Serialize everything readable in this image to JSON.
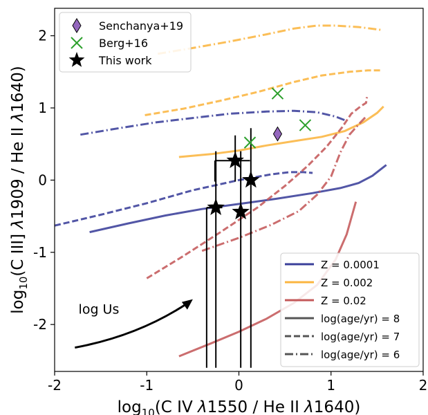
{
  "chart_data": {
    "type": "line",
    "xlabel_parts": [
      "log",
      "10",
      "(C IV ",
      "λ",
      "1550 / He II ",
      "λ",
      "1640)"
    ],
    "ylabel_parts": [
      "log",
      "10",
      "(C III] ",
      "λ",
      "1909 / He II ",
      "λ",
      "1640)"
    ],
    "xlim": [
      -2,
      2
    ],
    "ylim": [
      -2.65,
      2.38
    ],
    "x_ticks": [
      -2,
      -1,
      0,
      1,
      2
    ],
    "y_ticks": [
      -2,
      -1,
      0,
      1,
      2
    ],
    "x_tick_labels": [
      "-2",
      "-1",
      "0",
      "1",
      "2"
    ],
    "y_tick_labels": [
      "-2",
      "-1",
      "0",
      "1",
      "2"
    ],
    "grid": false,
    "colors": {
      "z0001": "#3a3f9a",
      "z002": "#fbb540",
      "z02": "#c4595a",
      "berg": "#2ca02c",
      "senchanya": "#9467bd"
    },
    "series": [
      {
        "name": "Z = 0.0001",
        "age": "8",
        "color": "#3a3f9a",
        "points": [
          [
            -1.62,
            -0.72
          ],
          [
            -1.2,
            -0.6
          ],
          [
            -0.8,
            -0.49
          ],
          [
            -0.4,
            -0.4
          ],
          [
            0,
            -0.33
          ],
          [
            0.4,
            -0.26
          ],
          [
            0.8,
            -0.18
          ],
          [
            1.1,
            -0.11
          ],
          [
            1.3,
            -0.04
          ],
          [
            1.45,
            0.06
          ],
          [
            1.55,
            0.16
          ],
          [
            1.6,
            0.21
          ]
        ]
      },
      {
        "name": "Z = 0.0001",
        "age": "7",
        "color": "#3a3f9a",
        "points": [
          [
            -2.0,
            -0.63
          ],
          [
            -1.5,
            -0.48
          ],
          [
            -1.0,
            -0.32
          ],
          [
            -0.5,
            -0.14
          ],
          [
            0,
            0
          ],
          [
            0.35,
            0.08
          ],
          [
            0.55,
            0.11
          ],
          [
            0.7,
            0.11
          ],
          [
            0.8,
            0.1
          ]
        ]
      },
      {
        "name": "Z = 0.0001",
        "age": "6",
        "color": "#3a3f9a",
        "points": [
          [
            -1.72,
            0.63
          ],
          [
            -1.3,
            0.72
          ],
          [
            -0.9,
            0.8
          ],
          [
            -0.5,
            0.86
          ],
          [
            -0.1,
            0.92
          ],
          [
            0.3,
            0.95
          ],
          [
            0.6,
            0.96
          ],
          [
            0.85,
            0.94
          ],
          [
            1.05,
            0.88
          ],
          [
            1.15,
            0.83
          ]
        ]
      },
      {
        "name": "Z = 0.002",
        "age": "8",
        "color": "#fbb540",
        "points": [
          [
            -0.65,
            0.32
          ],
          [
            -0.3,
            0.36
          ],
          [
            0,
            0.41
          ],
          [
            0.3,
            0.48
          ],
          [
            0.6,
            0.54
          ],
          [
            0.9,
            0.6
          ],
          [
            1.15,
            0.68
          ],
          [
            1.35,
            0.8
          ],
          [
            1.5,
            0.93
          ],
          [
            1.57,
            1.02
          ]
        ]
      },
      {
        "name": "Z = 0.002",
        "age": "7",
        "color": "#fbb540",
        "points": [
          [
            -1.02,
            0.9
          ],
          [
            -0.6,
            0.99
          ],
          [
            -0.2,
            1.1
          ],
          [
            0.2,
            1.22
          ],
          [
            0.6,
            1.36
          ],
          [
            0.9,
            1.45
          ],
          [
            1.2,
            1.5
          ],
          [
            1.4,
            1.52
          ],
          [
            1.55,
            1.52
          ]
        ]
      },
      {
        "name": "Z = 0.002",
        "age": "6",
        "color": "#fbb540",
        "points": [
          [
            -0.88,
            1.75
          ],
          [
            -0.5,
            1.83
          ],
          [
            -0.1,
            1.92
          ],
          [
            0.3,
            2.02
          ],
          [
            0.6,
            2.1
          ],
          [
            0.85,
            2.14
          ],
          [
            1.05,
            2.14
          ],
          [
            1.3,
            2.12
          ],
          [
            1.55,
            2.08
          ]
        ]
      },
      {
        "name": "Z = 0.02",
        "age": "8",
        "color": "#c4595a",
        "points": [
          [
            -0.65,
            -2.44
          ],
          [
            -0.3,
            -2.26
          ],
          [
            0,
            -2.1
          ],
          [
            0.3,
            -1.92
          ],
          [
            0.6,
            -1.7
          ],
          [
            0.85,
            -1.45
          ],
          [
            1.05,
            -1.1
          ],
          [
            1.17,
            -0.75
          ],
          [
            1.27,
            -0.3
          ]
        ]
      },
      {
        "name": "Z = 0.02",
        "age": "7",
        "color": "#c4595a",
        "points": [
          [
            -1.0,
            -1.36
          ],
          [
            -0.6,
            -1.05
          ],
          [
            -0.2,
            -0.72
          ],
          [
            0.2,
            -0.38
          ],
          [
            0.5,
            -0.08
          ],
          [
            0.75,
            0.2
          ],
          [
            0.95,
            0.46
          ],
          [
            1.12,
            0.73
          ],
          [
            1.22,
            0.92
          ],
          [
            1.32,
            1.02
          ],
          [
            1.38,
            1.07
          ],
          [
            1.39,
            1.15
          ]
        ]
      },
      {
        "name": "Z = 0.02",
        "age": "6",
        "color": "#c4595a",
        "points": [
          [
            -0.4,
            -0.98
          ],
          [
            0,
            -0.8
          ],
          [
            0.35,
            -0.62
          ],
          [
            0.65,
            -0.43
          ],
          [
            0.85,
            -0.2
          ],
          [
            1.0,
            0.05
          ],
          [
            1.1,
            0.38
          ],
          [
            1.2,
            0.63
          ],
          [
            1.32,
            0.8
          ],
          [
            1.38,
            0.88
          ]
        ]
      }
    ],
    "scatter": {
      "senchanya": {
        "name": "Senchanya+19",
        "color": "#9467bd",
        "points": [
          [
            0.42,
            0.64
          ]
        ]
      },
      "berg": {
        "name": "Berg+16",
        "color": "#2ca02c",
        "points": [
          [
            0.42,
            1.2
          ],
          [
            0.72,
            0.76
          ],
          [
            0.12,
            0.52
          ]
        ]
      },
      "this_work": {
        "name": "This work",
        "color": "#000000",
        "points": [
          {
            "x": -0.04,
            "y": 0.27,
            "xlo": -0.26,
            "xhi": 0.12,
            "ylo": -0.02,
            "yhi": 0.62
          },
          {
            "x": 0.13,
            "y": 0.0,
            "xlo": 0.13,
            "xhi": 0.13,
            "ylo": -2.6,
            "yhi": 0.72
          },
          {
            "x": -0.25,
            "y": -0.38,
            "xlo": -0.35,
            "xhi": -0.18,
            "ylo": -2.6,
            "yhi": 0.4
          },
          {
            "x": 0.02,
            "y": -0.44,
            "xlo": 0.02,
            "xhi": 0.02,
            "ylo": -2.6,
            "yhi": 0.4
          }
        ]
      }
    },
    "annotation": {
      "text": "log Us",
      "x": -1.52,
      "y": -1.85,
      "arrow_from": [
        -1.78,
        -2.32
      ],
      "arrow_to": [
        -0.5,
        -1.65
      ]
    },
    "legends": {
      "top_left": [
        {
          "label": "Senchanya+19",
          "marker": "diamond",
          "color": "#9467bd"
        },
        {
          "label": "Berg+16",
          "marker": "x",
          "color": "#2ca02c"
        },
        {
          "label": "This work",
          "marker": "star",
          "color": "#000000"
        }
      ],
      "bottom_right": [
        {
          "label": "Z = 0.0001",
          "style": "solid",
          "color": "#3a3f9a"
        },
        {
          "label": "Z = 0.002",
          "style": "solid",
          "color": "#fbb540"
        },
        {
          "label": "Z = 0.02",
          "style": "solid",
          "color": "#c4595a"
        },
        {
          "label": "log(age/yr) = 8",
          "style": "solid",
          "color": "#555555"
        },
        {
          "label": "log(age/yr) = 7",
          "style": "dashed",
          "color": "#555555"
        },
        {
          "label": "log(age/yr) = 6",
          "style": "dashdot",
          "color": "#555555"
        }
      ]
    }
  }
}
